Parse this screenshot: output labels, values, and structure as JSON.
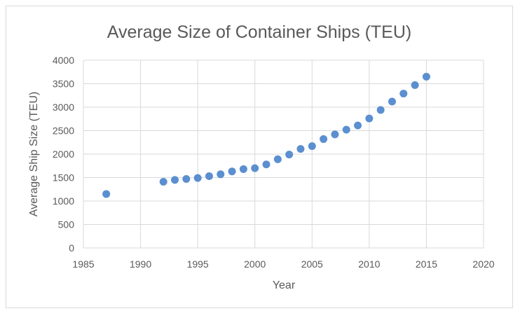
{
  "chart_data": {
    "type": "scatter",
    "title": "Average Size of Container Ships (TEU)",
    "xlabel": "Year",
    "ylabel": "Average Ship Size (TEU)",
    "xlim": [
      1985,
      2020
    ],
    "ylim": [
      0,
      4000
    ],
    "xticks": [
      1985,
      1990,
      1995,
      2000,
      2005,
      2010,
      2015,
      2020
    ],
    "yticks": [
      0,
      500,
      1000,
      1500,
      2000,
      2500,
      3000,
      3500,
      4000
    ],
    "grid": true,
    "legend": "none",
    "marker_color": "#5b8fd0",
    "series": [
      {
        "x": [
          1987,
          1992,
          1993,
          1994,
          1995,
          1996,
          1997,
          1998,
          1999,
          2000,
          2001,
          2002,
          2003,
          2004,
          2005,
          2006,
          2007,
          2008,
          2009,
          2010,
          2011,
          2012,
          2013,
          2014,
          2015
        ],
        "y": [
          1150,
          1410,
          1450,
          1470,
          1490,
          1530,
          1570,
          1630,
          1680,
          1700,
          1780,
          1890,
          1990,
          2110,
          2170,
          2320,
          2420,
          2520,
          2610,
          2760,
          2940,
          3120,
          3290,
          3470,
          3650
        ]
      }
    ]
  }
}
